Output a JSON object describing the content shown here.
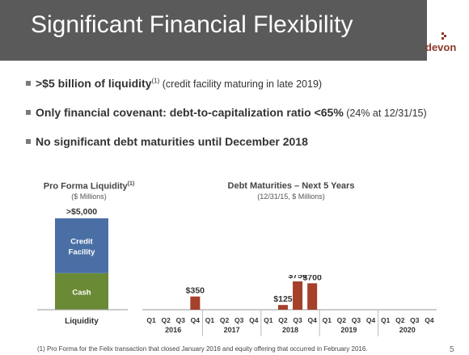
{
  "slide": {
    "title": "Significant Financial Flexibility",
    "logo_text": "devon",
    "page_number": "5",
    "footnote": "(1) Pro Forma for the Felix transaction that closed January 2016 and equity offering that occurred in February 2016."
  },
  "bullets": [
    {
      "bold": ">$5 billion of liquidity",
      "sup": "(1)",
      "rest": " (credit facility maturing in late 2019)"
    },
    {
      "bold": "Only financial covenant: debt-to-capitalization ratio <65%",
      "sup": "",
      "rest": " (24% at 12/31/15)"
    },
    {
      "bold": "No significant debt maturities until December 2018",
      "sup": "",
      "rest": ""
    }
  ],
  "colors": {
    "title_bar": "#5a5a5a",
    "credit": "#4a6fa5",
    "cash": "#6a8a35",
    "debt_bar": "#a5402a",
    "brand": "#8b3a2a"
  },
  "chart_data": [
    {
      "type": "bar",
      "title": "Pro Forma Liquidity",
      "title_sup": "(1)",
      "subtitle": "($ Millions)",
      "categories": [
        "Liquidity"
      ],
      "series": [
        {
          "name": "Cash",
          "values": [
            2000
          ]
        },
        {
          "name": "Credit Facility",
          "values": [
            3000
          ]
        }
      ],
      "total_label": ">$5,000",
      "stacked": true
    },
    {
      "type": "bar",
      "title": "Debt Maturities – Next 5 Years",
      "subtitle": "(12/31/15, $ Millions)",
      "categories": [
        "Q1",
        "Q2",
        "Q3",
        "Q4",
        "Q1",
        "Q2",
        "Q3",
        "Q4",
        "Q1",
        "Q2",
        "Q3",
        "Q4",
        "Q1",
        "Q2",
        "Q3",
        "Q4",
        "Q1",
        "Q2",
        "Q3",
        "Q4"
      ],
      "years": [
        "2016",
        "2017",
        "2018",
        "2019",
        "2020"
      ],
      "values": [
        0,
        0,
        0,
        350,
        0,
        0,
        0,
        0,
        0,
        125,
        750,
        700,
        0,
        0,
        0,
        0,
        0,
        0,
        0,
        0
      ],
      "value_labels": [
        "",
        "",
        "",
        "$350",
        "",
        "",
        "",
        "",
        "",
        "$125",
        "$750",
        "$700",
        "",
        "",
        "",
        "",
        "",
        "",
        "",
        ""
      ],
      "ylim": [
        0,
        750
      ]
    }
  ]
}
